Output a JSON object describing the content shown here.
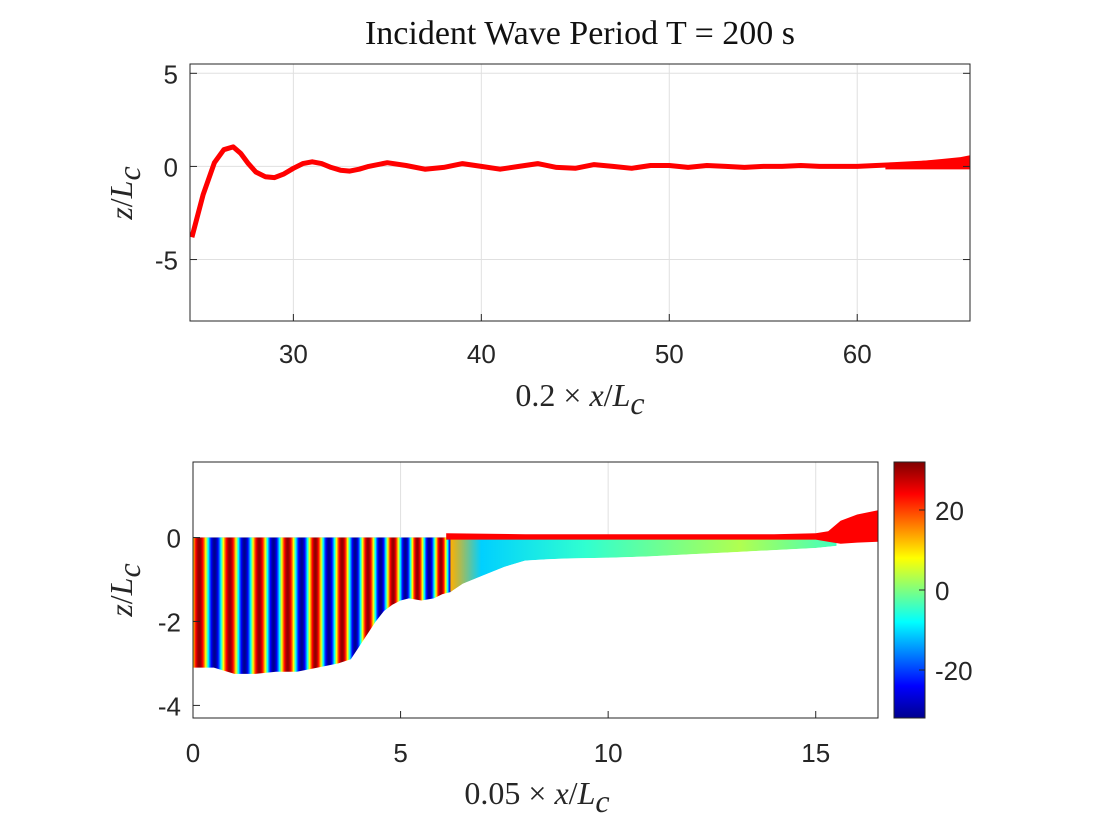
{
  "figure": {
    "title": "Incident Wave Period T = 200 s"
  },
  "chart_data": [
    {
      "type": "line",
      "name": "top",
      "xlabel": "0.2 × x/L_c",
      "ylabel": "z/L_c",
      "xlim": [
        24.5,
        66
      ],
      "ylim": [
        -8.3,
        5.5
      ],
      "xticks": [
        30,
        40,
        50,
        60
      ],
      "yticks": [
        -5,
        0,
        5
      ],
      "grid": true,
      "line_color": "#ff0000",
      "series": [
        {
          "x": [
            24.6,
            25.2,
            25.8,
            26.3,
            26.8,
            27.2,
            27.6,
            28.0,
            28.5,
            29.0,
            29.5,
            30.0,
            30.5,
            31.0,
            31.5,
            32.0,
            32.5,
            33.0,
            33.5,
            34.0,
            35.0,
            36.0,
            37.0,
            38.0,
            39.0,
            40.0,
            41.0,
            42.0,
            43.0,
            44.0,
            45.0,
            46.0,
            47.0,
            48.0,
            49.0,
            50.0,
            51.0,
            52.0,
            53.0,
            54.0,
            55.0,
            56.0,
            57.0,
            58.0,
            59.0,
            60.0,
            61.0,
            62.0,
            63.0,
            64.0,
            65.0,
            66.0
          ],
          "y": [
            -3.8,
            -1.5,
            0.2,
            0.9,
            1.05,
            0.7,
            0.15,
            -0.3,
            -0.55,
            -0.6,
            -0.4,
            -0.1,
            0.15,
            0.25,
            0.15,
            -0.05,
            -0.2,
            -0.25,
            -0.15,
            0.0,
            0.2,
            0.05,
            -0.15,
            -0.05,
            0.15,
            0.0,
            -0.15,
            0.0,
            0.15,
            -0.05,
            -0.1,
            0.1,
            0.0,
            -0.1,
            0.05,
            0.05,
            -0.05,
            0.05,
            0.0,
            -0.05,
            0.0,
            0.0,
            0.05,
            0.0,
            0.0,
            0.0,
            0.05,
            0.1,
            0.15,
            0.2,
            0.25,
            0.3
          ],
          "band_lower": [
            0.0,
            0.0,
            0.0,
            0.0,
            0.0,
            0.0
          ],
          "band_upper": [
            0.0,
            0.15,
            0.3,
            0.4,
            0.5,
            0.6
          ],
          "band_x": [
            61.5,
            62.5,
            63.5,
            64.5,
            65.5,
            66.0
          ]
        }
      ]
    },
    {
      "type": "heatmap",
      "name": "bottom",
      "xlabel": "0.05 × x/L_c",
      "ylabel": "z/L_c",
      "xlim": [
        0,
        16.5
      ],
      "ylim": [
        -4.3,
        1.8
      ],
      "xticks": [
        0,
        5,
        10,
        15
      ],
      "yticks": [
        -4,
        -2,
        0
      ],
      "grid": true,
      "colormap": "jet",
      "colorbar": {
        "limits": [
          -32,
          32
        ],
        "ticks": [
          -20,
          0,
          20
        ]
      },
      "bathymetry": {
        "x": [
          0,
          0.5,
          1.0,
          1.5,
          2.0,
          2.5,
          3.0,
          3.5,
          3.8,
          4.0,
          4.2,
          4.4,
          4.6,
          4.8,
          5.0,
          5.2,
          5.5,
          5.8,
          6.0,
          6.2,
          6.5,
          7.0,
          7.5,
          8.0,
          8.5,
          9.0,
          10.0,
          11.0,
          12.0,
          13.0,
          14.0,
          15.0,
          15.5
        ],
        "y": [
          -3.1,
          -3.1,
          -3.25,
          -3.25,
          -3.2,
          -3.2,
          -3.1,
          -3.0,
          -2.9,
          -2.6,
          -2.3,
          -2.0,
          -1.75,
          -1.6,
          -1.5,
          -1.45,
          -1.5,
          -1.45,
          -1.35,
          -1.3,
          -1.1,
          -0.9,
          -0.7,
          -0.55,
          -0.52,
          -0.5,
          -0.48,
          -0.45,
          -0.4,
          -0.35,
          -0.3,
          -0.25,
          -0.2
        ]
      },
      "wave_stripes": {
        "x_start": 0,
        "x_end": 6.2,
        "wavelength_start": 0.75,
        "wavelength_end": 0.55
      },
      "surface": {
        "x": [
          6.1,
          8,
          10,
          12,
          14,
          15.0,
          15.3,
          15.6,
          16.0,
          16.5
        ],
        "y_top": [
          0.1,
          0.08,
          0.08,
          0.08,
          0.08,
          0.1,
          0.15,
          0.4,
          0.55,
          0.65
        ],
        "y_bottom": [
          -0.05,
          -0.05,
          -0.05,
          -0.05,
          -0.05,
          -0.05,
          -0.1,
          -0.15,
          -0.12,
          -0.1
        ],
        "color": "#ff0000"
      }
    }
  ]
}
